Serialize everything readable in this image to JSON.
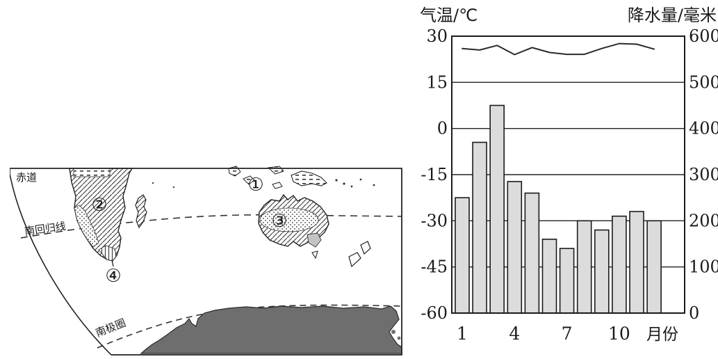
{
  "figure": {
    "map": {
      "labels": {
        "equator": "赤道",
        "tropic_of_capricorn": "南回归线",
        "antarctic_circle": "南极圈"
      },
      "markers": [
        {
          "label": "①"
        },
        {
          "label": "②"
        },
        {
          "label": "③"
        },
        {
          "label": "④"
        }
      ]
    }
  },
  "chart_data": {
    "type": "bar",
    "subtype": "climograph-bar-plus-line",
    "title": "",
    "categories": [
      1,
      2,
      3,
      4,
      5,
      6,
      7,
      8,
      9,
      10,
      11,
      12
    ],
    "x_tick_labels": [
      "1",
      "4",
      "7",
      "10"
    ],
    "xlabel": "月份",
    "left_axis": {
      "label": "气温/℃",
      "ticks": [
        30,
        15,
        0,
        -15,
        -30,
        -45,
        -60
      ],
      "range": [
        -60,
        30
      ]
    },
    "right_axis": {
      "label": "降水量/毫米",
      "ticks": [
        600,
        500,
        400,
        300,
        200,
        100,
        0
      ],
      "range": [
        0,
        600
      ]
    },
    "series": [
      {
        "name": "降水量",
        "type": "bar",
        "axis": "right",
        "values": [
          250,
          370,
          450,
          285,
          260,
          160,
          140,
          200,
          180,
          210,
          220,
          200
        ]
      },
      {
        "name": "气温",
        "type": "line",
        "axis": "left",
        "values": [
          26,
          25.5,
          27,
          24,
          26.3,
          24.7,
          24.1,
          24.1,
          26,
          27.6,
          27.4,
          25.8
        ]
      }
    ],
    "grid": true,
    "legend": "none",
    "colors": {
      "bar_fill": "#dcdcdc",
      "bar_stroke": "#1a1a1a",
      "line_stroke": "#2a2a2a",
      "antarctica_fill": "#6e6e6e"
    }
  }
}
